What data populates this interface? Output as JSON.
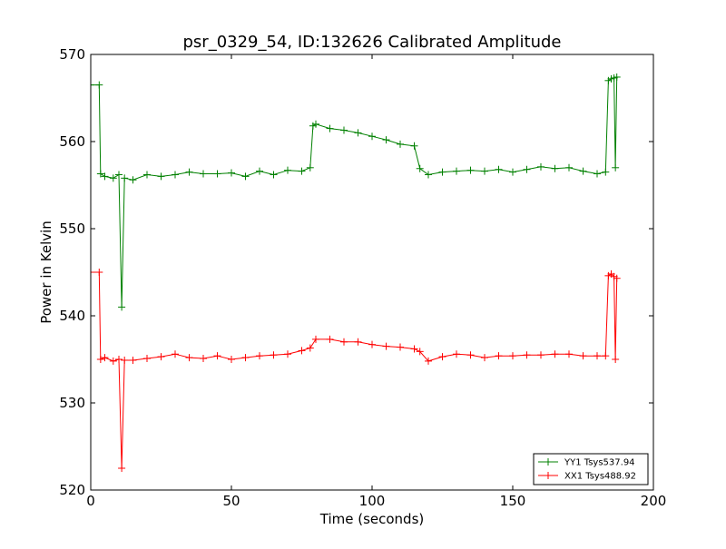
{
  "chart_data": {
    "type": "line",
    "title": "psr_0329_54, ID:132626 Calibrated Amplitude",
    "xlabel": "Time (seconds)",
    "ylabel": "Power in Kelvin",
    "xlim": [
      0,
      200
    ],
    "ylim": [
      520,
      570
    ],
    "xticks": [
      "0",
      "50",
      "100",
      "150",
      "200"
    ],
    "yticks": [
      "520",
      "530",
      "540",
      "550",
      "560",
      "570"
    ],
    "grid": false,
    "legend_position": "lower-right",
    "marker": "+",
    "series": [
      {
        "name": "YY1 Tsys537.94",
        "color": "#008000",
        "x": [
          0,
          3,
          3.5,
          5,
          8,
          10,
          11,
          12,
          15,
          20,
          25,
          30,
          35,
          40,
          45,
          50,
          55,
          60,
          65,
          70,
          75,
          78,
          79,
          80,
          85,
          90,
          95,
          100,
          105,
          110,
          115,
          117,
          120,
          125,
          130,
          135,
          140,
          145,
          150,
          155,
          160,
          165,
          170,
          175,
          180,
          183,
          184,
          185,
          186,
          186.5,
          187
        ],
        "y": [
          566.5,
          566.5,
          556.3,
          556.0,
          555.8,
          556.2,
          541.0,
          555.8,
          555.6,
          556.2,
          556.0,
          556.2,
          556.5,
          556.3,
          556.3,
          556.4,
          556.0,
          556.6,
          556.2,
          556.7,
          556.6,
          557.0,
          561.8,
          562.0,
          561.5,
          561.3,
          561.0,
          560.6,
          560.2,
          559.7,
          559.5,
          556.9,
          556.2,
          556.5,
          556.6,
          556.7,
          556.6,
          556.8,
          556.5,
          556.8,
          557.1,
          556.9,
          557.0,
          556.6,
          556.3,
          556.5,
          567.0,
          567.2,
          567.3,
          557.0,
          567.4
        ]
      },
      {
        "name": "XX1 Tsys488.92",
        "color": "#ff0000",
        "x": [
          0,
          3,
          3.5,
          5,
          8,
          10,
          11,
          12,
          15,
          20,
          25,
          30,
          35,
          40,
          45,
          50,
          55,
          60,
          65,
          70,
          75,
          78,
          80,
          85,
          90,
          95,
          100,
          105,
          110,
          115,
          117,
          120,
          125,
          130,
          135,
          140,
          145,
          150,
          155,
          160,
          165,
          170,
          175,
          180,
          183,
          184,
          185,
          186,
          186.5,
          187
        ],
        "y": [
          545.0,
          545.0,
          535.0,
          535.2,
          534.8,
          535.0,
          522.5,
          534.9,
          534.9,
          535.1,
          535.3,
          535.6,
          535.2,
          535.1,
          535.4,
          535.0,
          535.2,
          535.4,
          535.5,
          535.6,
          536.0,
          536.3,
          537.3,
          537.3,
          537.0,
          537.0,
          536.7,
          536.5,
          536.4,
          536.2,
          535.9,
          534.8,
          535.3,
          535.6,
          535.5,
          535.2,
          535.4,
          535.4,
          535.5,
          535.5,
          535.6,
          535.6,
          535.4,
          535.4,
          535.4,
          544.6,
          544.8,
          544.5,
          535.0,
          544.3
        ]
      }
    ]
  }
}
